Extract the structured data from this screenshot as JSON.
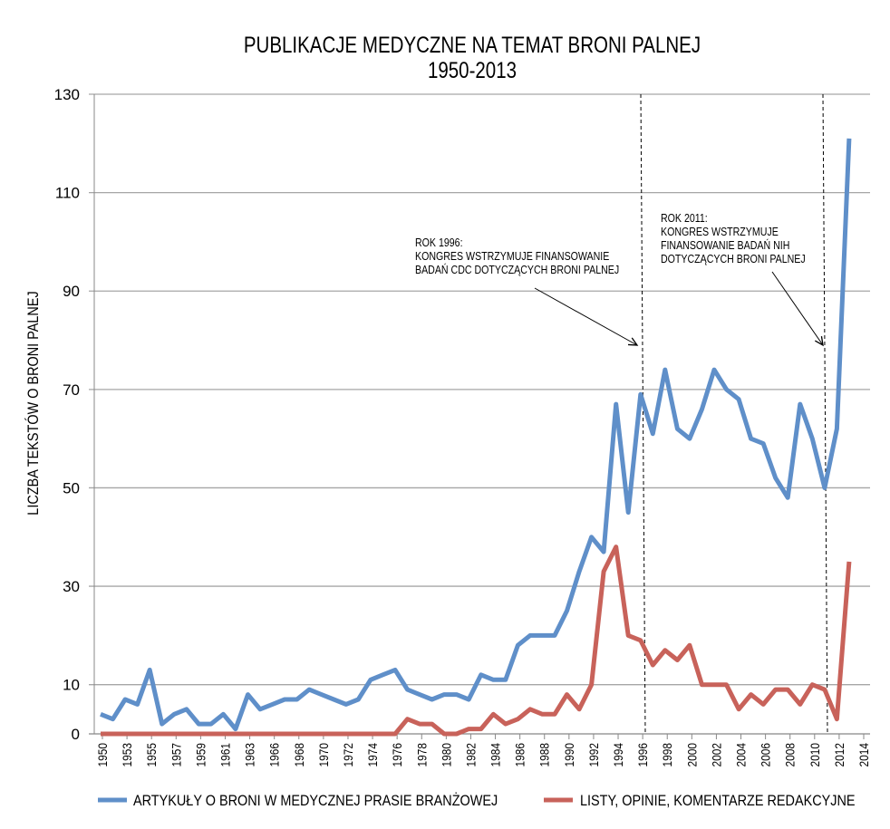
{
  "chart_data": {
    "type": "line",
    "title": [
      "PUBLIKACJE MEDYCZNE NA TEMAT BRONI PALNEJ",
      "1950-2013"
    ],
    "xlabel": "",
    "ylabel": "LICZBA TEKSTÓW O BRONI PALNEJ",
    "ylim": [
      0,
      130
    ],
    "yticks": [
      0,
      10,
      30,
      50,
      70,
      90,
      110,
      130
    ],
    "grid": true,
    "xtick_labels": [
      "1950",
      "1953",
      "1955",
      "1957",
      "1959",
      "1961",
      "1963",
      "1966",
      "1968",
      "1970",
      "1972",
      "1974",
      "1976",
      "1978",
      "1980",
      "1982",
      "1984",
      "1986",
      "1988",
      "1990",
      "1992",
      "1994",
      "1996",
      "1998",
      "2000",
      "2002",
      "2004",
      "2006",
      "2008",
      "2010",
      "2012",
      "2014"
    ],
    "highlight_tick": "1996",
    "highlight_color": "#ff0000",
    "x": [
      1950,
      1952,
      1953,
      1954,
      1955,
      1956,
      1957,
      1958,
      1959,
      1960,
      1961,
      1962,
      1963,
      1965,
      1966,
      1967,
      1968,
      1969,
      1970,
      1971,
      1972,
      1973,
      1974,
      1975,
      1976,
      1977,
      1978,
      1979,
      1980,
      1981,
      1982,
      1983,
      1984,
      1985,
      1986,
      1987,
      1988,
      1989,
      1990,
      1991,
      1992,
      1993,
      1994,
      1995,
      1996,
      1997,
      1998,
      1999,
      2000,
      2001,
      2002,
      2003,
      2004,
      2005,
      2006,
      2007,
      2008,
      2009,
      2010,
      2011,
      2012,
      2013
    ],
    "series": [
      {
        "name": "ARTYKUŁY O BRONI W MEDYCZNEJ PRASIE BRANŻOWEJ",
        "color": "#5f8fc9",
        "values": [
          4,
          3,
          7,
          6,
          13,
          2,
          4,
          5,
          2,
          2,
          4,
          1,
          8,
          5,
          6,
          7,
          7,
          9,
          8,
          7,
          6,
          7,
          11,
          12,
          13,
          9,
          8,
          7,
          8,
          8,
          7,
          12,
          11,
          11,
          18,
          20,
          20,
          20,
          25,
          33,
          40,
          37,
          67,
          45,
          69,
          61,
          74,
          62,
          60,
          66,
          74,
          70,
          68,
          60,
          59,
          52,
          48,
          67,
          60,
          50,
          62,
          121
        ]
      },
      {
        "name": "LISTY, OPINIE, KOMENTARZE REDAKCYJNE",
        "color": "#c8625a",
        "values": [
          0,
          0,
          0,
          0,
          0,
          0,
          0,
          0,
          0,
          0,
          0,
          0,
          0,
          0,
          0,
          0,
          0,
          0,
          0,
          0,
          0,
          0,
          0,
          0,
          0,
          3,
          2,
          2,
          0,
          0,
          1,
          1,
          4,
          2,
          3,
          5,
          4,
          4,
          8,
          5,
          10,
          33,
          38,
          20,
          19,
          14,
          17,
          15,
          18,
          10,
          10,
          10,
          5,
          8,
          6,
          9,
          9,
          6,
          10,
          9,
          3,
          35
        ]
      }
    ],
    "legend_position": "bottom",
    "annotations": [
      {
        "year_label": "ROK 1996:",
        "lines": [
          "KONGRES WSTRZYMUJE FINANSOWANIE",
          "BADAŃ CDC DOTYCZĄCYCH BRONI PALNEJ"
        ],
        "marker_year": 1996
      },
      {
        "year_label": "ROK 2011:",
        "lines": [
          "KONGRES WSTRZYMUJE",
          "FINANSOWANIE BADAŃ NIH",
          "DOTYCZĄCYCH BRONI PALNEJ"
        ],
        "marker_year": 2011
      }
    ]
  }
}
